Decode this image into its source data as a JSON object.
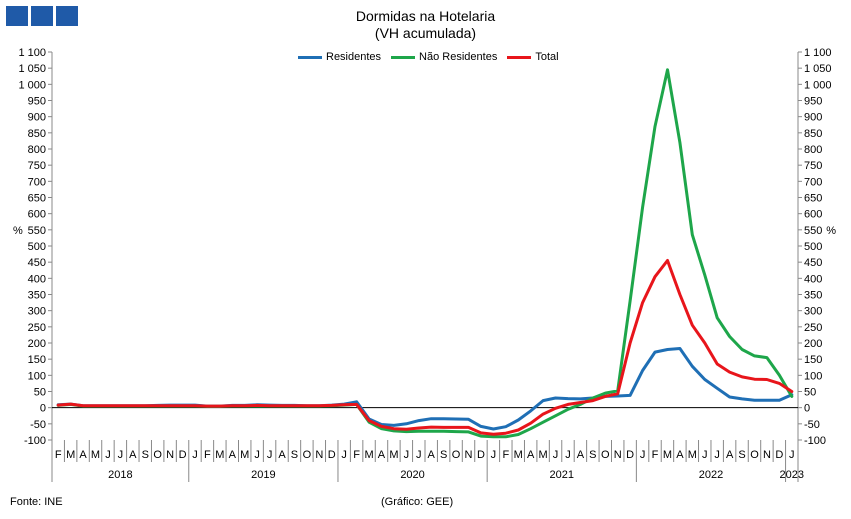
{
  "chart_data": {
    "type": "line",
    "title": "Dormidas na Hotelaria",
    "subtitle": "(VH acumulada)",
    "ylabel_left": "%",
    "ylabel_right": "%",
    "ylim": [
      -100,
      1100
    ],
    "y_ticks": [
      -100,
      -50,
      0,
      50,
      100,
      150,
      200,
      250,
      300,
      350,
      400,
      450,
      500,
      550,
      600,
      650,
      700,
      750,
      800,
      850,
      900,
      950,
      1000,
      1050,
      1100
    ],
    "y_tick_labels": [
      "-100",
      "-50",
      "0",
      "50",
      "100",
      "150",
      "200",
      "250",
      "300",
      "350",
      "400",
      "450",
      "500",
      "550",
      "600",
      "650",
      "700",
      "750",
      "800",
      "850",
      "900",
      "950",
      "1 000",
      "1 050",
      "1 100"
    ],
    "months": [
      "F",
      "M",
      "A",
      "M",
      "J",
      "J",
      "A",
      "S",
      "O",
      "N",
      "D",
      "J",
      "F",
      "M",
      "A",
      "M",
      "J",
      "J",
      "A",
      "S",
      "O",
      "N",
      "D",
      "J",
      "F",
      "M",
      "A",
      "M",
      "J",
      "J",
      "A",
      "S",
      "O",
      "N",
      "D",
      "J",
      "F",
      "M",
      "A",
      "M",
      "J",
      "J",
      "A",
      "S",
      "O",
      "N",
      "D",
      "J",
      "F",
      "M",
      "A",
      "M",
      "J",
      "J",
      "A",
      "S",
      "O",
      "N",
      "D",
      "J"
    ],
    "years": [
      {
        "label": "2018",
        "start": 0,
        "end": 11
      },
      {
        "label": "2019",
        "start": 11,
        "end": 23
      },
      {
        "label": "2020",
        "start": 23,
        "end": 35
      },
      {
        "label": "2021",
        "start": 35,
        "end": 47
      },
      {
        "label": "2022",
        "start": 47,
        "end": 59
      },
      {
        "label": "2023",
        "start": 59,
        "end": 60
      }
    ],
    "series": [
      {
        "name": "Residentes",
        "color": "#1f6fb5",
        "values": [
          9,
          11,
          6,
          6,
          6,
          6,
          6,
          6,
          7,
          8,
          8,
          8,
          5,
          5,
          7,
          7,
          9,
          8,
          7,
          7,
          6,
          6,
          8,
          11,
          18,
          -35,
          -52,
          -55,
          -50,
          -40,
          -34,
          -34,
          -35,
          -36,
          -58,
          -66,
          -59,
          -38,
          -10,
          22,
          30,
          28,
          27,
          30,
          35,
          36,
          38,
          115,
          172,
          180,
          183,
          128,
          87,
          60,
          33,
          27,
          23,
          23,
          23,
          40
        ]
      },
      {
        "name": "Não Residentes",
        "color": "#1ea64a",
        "values": [
          7,
          10,
          5,
          5,
          5,
          5,
          5,
          5,
          5,
          5,
          5,
          5,
          4,
          4,
          5,
          5,
          5,
          5,
          5,
          5,
          5,
          5,
          6,
          8,
          10,
          -45,
          -65,
          -72,
          -74,
          -73,
          -73,
          -73,
          -74,
          -75,
          -88,
          -90,
          -90,
          -83,
          -65,
          -45,
          -25,
          -5,
          10,
          30,
          45,
          52,
          330,
          620,
          870,
          1045,
          820,
          535,
          410,
          278,
          220,
          180,
          160,
          155,
          100,
          35
        ]
      },
      {
        "name": "Total",
        "color": "#e8151b",
        "values": [
          8,
          11,
          6,
          6,
          6,
          6,
          6,
          6,
          6,
          6,
          6,
          6,
          5,
          5,
          6,
          6,
          7,
          6,
          6,
          6,
          6,
          6,
          7,
          9,
          10,
          -40,
          -58,
          -65,
          -67,
          -63,
          -60,
          -61,
          -61,
          -61,
          -78,
          -82,
          -79,
          -69,
          -48,
          -20,
          -2,
          10,
          16,
          22,
          35,
          43,
          200,
          325,
          405,
          455,
          350,
          255,
          200,
          135,
          110,
          95,
          88,
          87,
          75,
          50
        ]
      }
    ]
  },
  "source": "Fonte: INE",
  "credit": "(Gráfico: GEE)",
  "legend": [
    "Residentes",
    "Não Residentes",
    "Total"
  ],
  "colors": {
    "logo": "#1f5aa8",
    "axis": "#888888",
    "zero_line": "#000000"
  }
}
